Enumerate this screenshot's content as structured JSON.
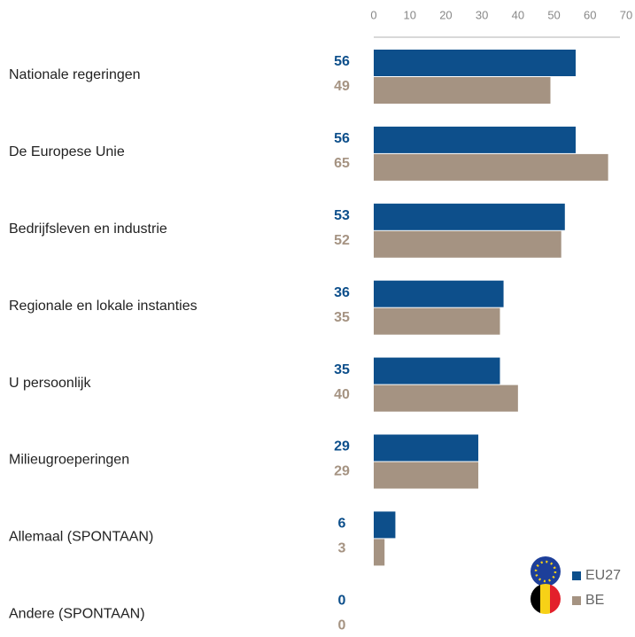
{
  "chart_data": {
    "type": "bar",
    "orientation": "horizontal",
    "categories": [
      "Nationale regeringen",
      "De Europese Unie",
      "Bedrijfsleven en industrie",
      "Regionale en lokale instanties",
      "U persoonlijk",
      "Milieugroeperingen",
      "Allemaal (SPONTAAN)",
      "Andere (SPONTAAN)"
    ],
    "series": [
      {
        "name": "EU27",
        "color": "#0d4f8b",
        "values": [
          56,
          56,
          53,
          36,
          35,
          29,
          6,
          0
        ]
      },
      {
        "name": "BE",
        "color": "#a59382",
        "values": [
          49,
          65,
          52,
          35,
          40,
          29,
          3,
          0
        ]
      }
    ],
    "xlim": [
      0,
      70
    ],
    "xticks": [
      0,
      10,
      20,
      30,
      40,
      50,
      60,
      70
    ],
    "legend": "bottom-right"
  }
}
